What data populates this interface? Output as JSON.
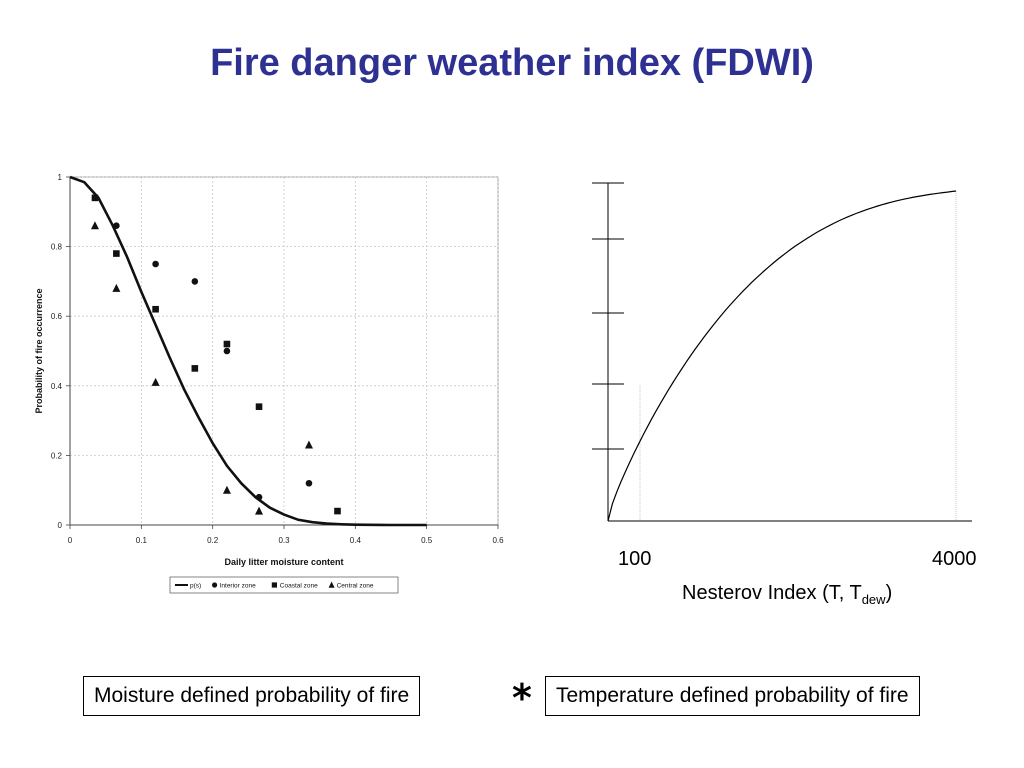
{
  "title": "Fire danger weather index (FDWI)",
  "chart_data": [
    {
      "type": "scatter",
      "xlabel": "Daily litter moisture content",
      "ylabel": "Probability of fire occurrence",
      "xlim": [
        0,
        0.6
      ],
      "ylim": [
        0,
        1
      ],
      "xticks": [
        "0",
        "0.1",
        "0.2",
        "0.3",
        "0.4",
        "0.5",
        "0.6"
      ],
      "yticks": [
        "0",
        "0.2",
        "0.4",
        "0.6",
        "0.8",
        "1"
      ],
      "grid": true,
      "legend_position": "bottom",
      "series": [
        {
          "name": "p(s)",
          "kind": "line",
          "points": [
            [
              0,
              1
            ],
            [
              0.02,
              0.985
            ],
            [
              0.04,
              0.94
            ],
            [
              0.06,
              0.86
            ],
            [
              0.08,
              0.77
            ],
            [
              0.1,
              0.67
            ],
            [
              0.12,
              0.575
            ],
            [
              0.14,
              0.48
            ],
            [
              0.16,
              0.39
            ],
            [
              0.18,
              0.31
            ],
            [
              0.2,
              0.235
            ],
            [
              0.22,
              0.17
            ],
            [
              0.24,
              0.12
            ],
            [
              0.26,
              0.08
            ],
            [
              0.28,
              0.05
            ],
            [
              0.3,
              0.03
            ],
            [
              0.32,
              0.015
            ],
            [
              0.34,
              0.008
            ],
            [
              0.36,
              0.004
            ],
            [
              0.38,
              0.002
            ],
            [
              0.4,
              0.001
            ],
            [
              0.45,
              0
            ],
            [
              0.5,
              0
            ]
          ]
        },
        {
          "name": "Interior zone",
          "kind": "circle",
          "points": [
            [
              0.065,
              0.86
            ],
            [
              0.12,
              0.75
            ],
            [
              0.175,
              0.7
            ],
            [
              0.22,
              0.5
            ],
            [
              0.265,
              0.08
            ],
            [
              0.335,
              0.12
            ]
          ]
        },
        {
          "name": "Coastal zone",
          "kind": "square",
          "points": [
            [
              0.035,
              0.94
            ],
            [
              0.065,
              0.78
            ],
            [
              0.12,
              0.62
            ],
            [
              0.175,
              0.45
            ],
            [
              0.22,
              0.52
            ],
            [
              0.265,
              0.34
            ],
            [
              0.375,
              0.04
            ]
          ]
        },
        {
          "name": "Central zone",
          "kind": "triangle",
          "points": [
            [
              0.035,
              0.86
            ],
            [
              0.065,
              0.68
            ],
            [
              0.12,
              0.41
            ],
            [
              0.22,
              0.1
            ],
            [
              0.265,
              0.04
            ],
            [
              0.335,
              0.23
            ]
          ]
        }
      ]
    },
    {
      "type": "line",
      "xlabel_main": "Nesterov Index (T, T",
      "xlabel_sub": "dew",
      "xlabel_end": ")",
      "xticks": [
        "100",
        "4000"
      ],
      "ytick_count": 5,
      "description_curve": "concave increasing curve that saturates near the top"
    }
  ],
  "boxes": {
    "left": "Moisture defined probability of fire",
    "operator": "*",
    "right": "Temperature defined probability of fire"
  }
}
